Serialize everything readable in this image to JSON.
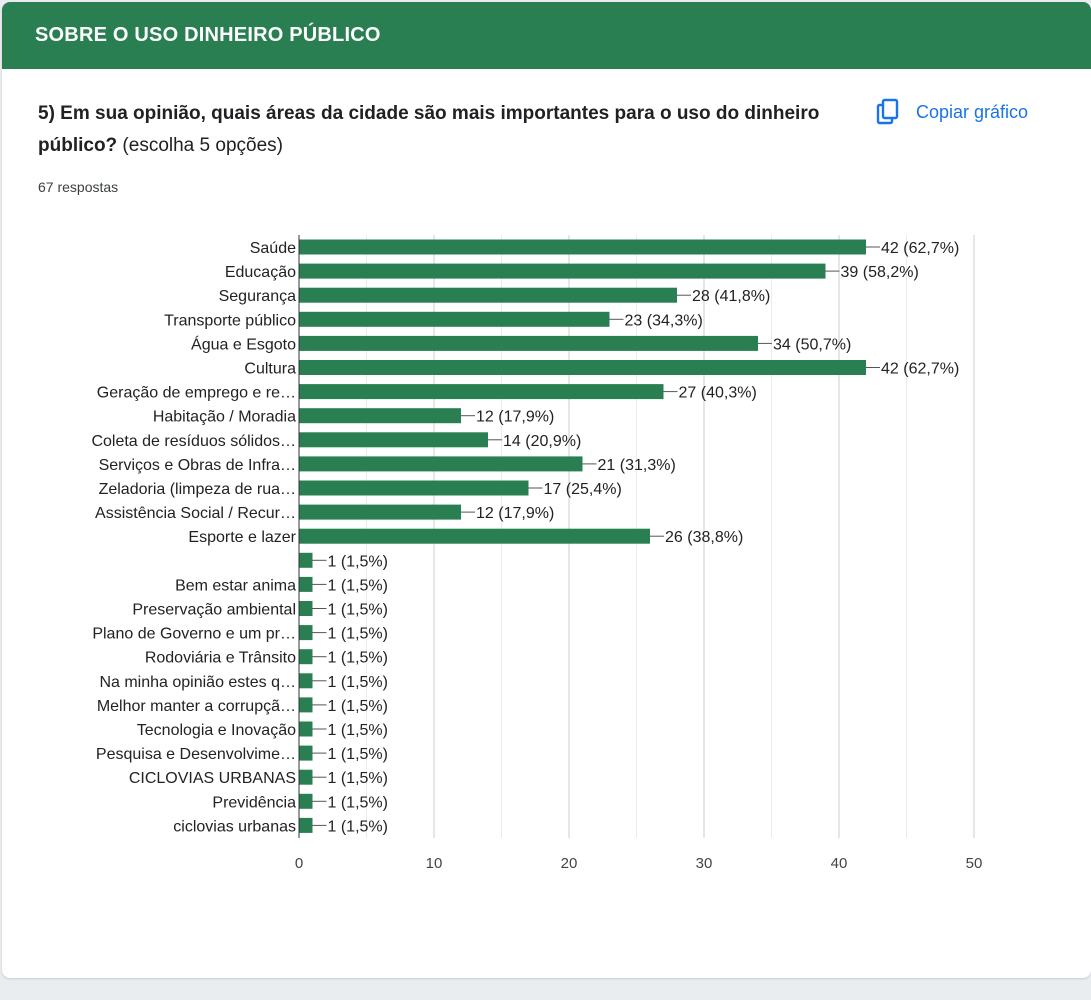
{
  "section": {
    "title": "SOBRE O USO DINHEIRO PÚBLICO"
  },
  "question": {
    "title_bold": "5)  Em sua opinião, quais áreas  da cidade são mais importantes para o uso do dinheiro público?",
    "title_rest": " (escolha 5 opções)",
    "responses": "67 respostas"
  },
  "toolbar": {
    "copy_label": "Copiar gráfico",
    "copy_icon": "copy-icon"
  },
  "colors": {
    "header": "#2a7f52",
    "bar": "#2a7f52",
    "accent": "#1a73e8"
  },
  "chart_data": {
    "type": "bar",
    "orientation": "horizontal",
    "categories": [
      "Saúde",
      "Educação",
      "Segurança",
      "Transporte público",
      "Água e Esgoto",
      "Cultura",
      "Geração de emprego e re…",
      "Habitação / Moradia",
      "Coleta de resíduos sólidos…",
      "Serviços e Obras de Infra…",
      "Zeladoria (limpeza de rua…",
      "Assistência Social / Recur…",
      "Esporte e lazer",
      "",
      "Bem estar anima",
      "Preservação ambiental",
      "Plano de Governo e um pr…",
      "Rodoviária e Trânsito",
      "Na minha opinião estes q…",
      "Melhor manter a corrupçã…",
      "Tecnologia e Inovação",
      "Pesquisa e Desenvolvime…",
      "CICLOVIAS URBANAS",
      "Previdência",
      "ciclovias urbanas"
    ],
    "values": [
      42,
      39,
      28,
      23,
      34,
      42,
      27,
      12,
      14,
      21,
      17,
      12,
      26,
      1,
      1,
      1,
      1,
      1,
      1,
      1,
      1,
      1,
      1,
      1,
      1
    ],
    "value_labels": [
      "42 (62,7%)",
      "39 (58,2%)",
      "28 (41,8%)",
      "23 (34,3%)",
      "34 (50,7%)",
      "42 (62,7%)",
      "27 (40,3%)",
      "12 (17,9%)",
      "14 (20,9%)",
      "21 (31,3%)",
      "17 (25,4%)",
      "12 (17,9%)",
      "26 (38,8%)",
      "1 (1,5%)",
      "1 (1,5%)",
      "1 (1,5%)",
      "1 (1,5%)",
      "1 (1,5%)",
      "1 (1,5%)",
      "1 (1,5%)",
      "1 (1,5%)",
      "1 (1,5%)",
      "1 (1,5%)",
      "1 (1,5%)",
      "1 (1,5%)"
    ],
    "xlim": [
      0,
      50
    ],
    "xticks": [
      "0",
      "10",
      "20",
      "30",
      "40",
      "50"
    ],
    "grid": true
  }
}
